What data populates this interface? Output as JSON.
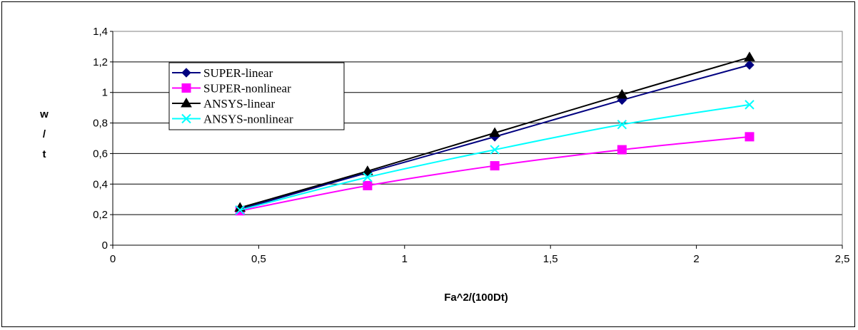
{
  "chart_data": {
    "type": "line",
    "title": "",
    "xlabel": "Fa^2/(100Dt)",
    "ylabel": [
      "w",
      "/",
      "t"
    ],
    "xlim": [
      0,
      2.5
    ],
    "ylim": [
      0,
      1.4
    ],
    "x_ticks": [
      "0",
      "0,5",
      "1",
      "1,5",
      "2",
      "2,5"
    ],
    "y_ticks": [
      "0",
      "0,2",
      "0,4",
      "0,6",
      "0,8",
      "1",
      "1,2",
      "1,4"
    ],
    "grid": "horizontal",
    "legend_position": "top-left",
    "x": [
      0.436,
      0.873,
      1.309,
      1.745,
      2.182
    ],
    "series": [
      {
        "name": "SUPER-linear",
        "marker": "diamond",
        "color": "#000080",
        "values": [
          0.235,
          0.475,
          0.71,
          0.95,
          1.18
        ]
      },
      {
        "name": "SUPER-nonlinear",
        "marker": "square",
        "color": "#ff00ff",
        "values": [
          0.225,
          0.39,
          0.52,
          0.625,
          0.71
        ]
      },
      {
        "name": "ANSYS-linear",
        "marker": "triangle",
        "color": "#000000",
        "values": [
          0.245,
          0.485,
          0.735,
          0.985,
          1.23
        ]
      },
      {
        "name": "ANSYS-nonlinear",
        "marker": "x",
        "color": "#00ffff",
        "values": [
          0.23,
          0.445,
          0.625,
          0.79,
          0.92
        ]
      }
    ]
  }
}
